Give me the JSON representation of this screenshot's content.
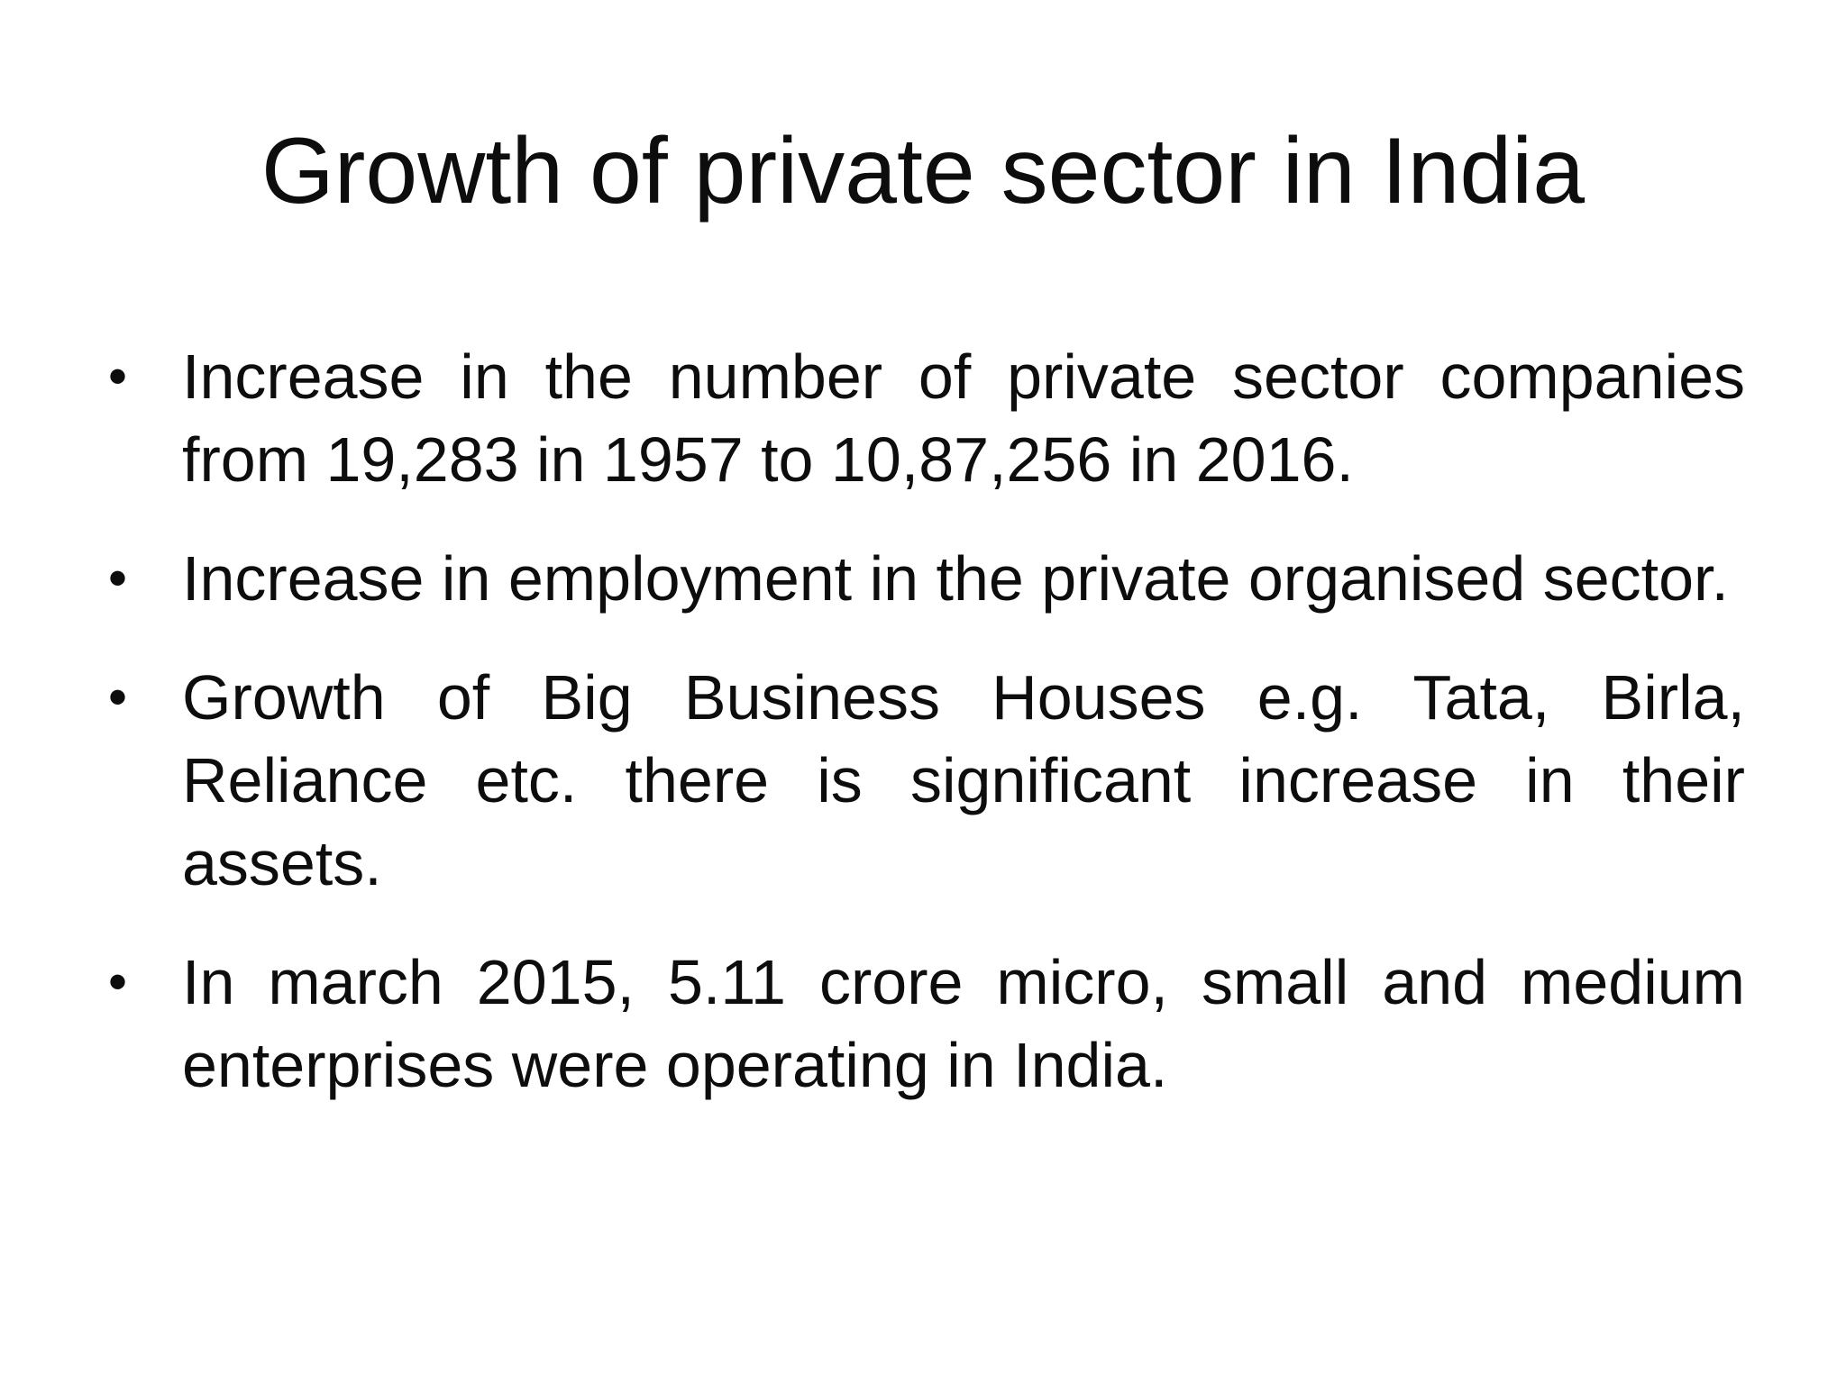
{
  "slide": {
    "title": "Growth of private sector in India",
    "bullet_marker": "•",
    "bullets": [
      "Increase in the number of private sector companies from 19,283 in 1957 to 10,87,256 in 2016.",
      "Increase in employment in the private organised sector.",
      "Growth of Big Business Houses e.g. Tata, Birla, Reliance etc. there is significant increase in their assets.",
      "In march 2015, 5.11 crore micro, small and medium enterprises were operating in India."
    ]
  }
}
